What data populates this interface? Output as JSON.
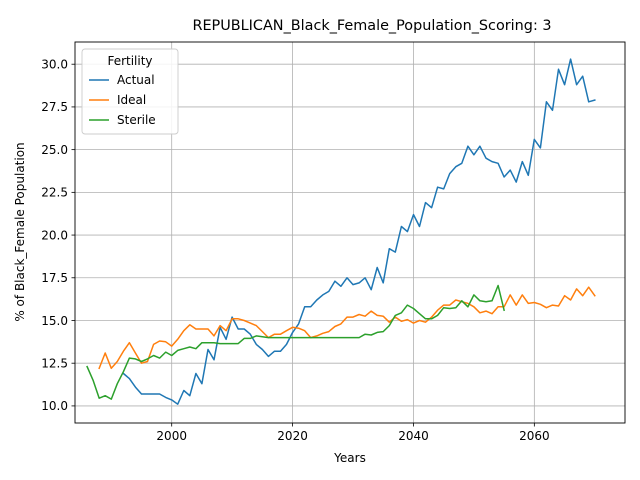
{
  "chart_data": {
    "type": "line",
    "title": "REPUBLICAN_Black_Female_Population_Scoring: 3",
    "xlabel": "Years",
    "ylabel": "% of Black_Female Population",
    "xlim": [
      1984,
      2075
    ],
    "ylim": [
      9.0,
      31.3
    ],
    "xticks": [
      2000,
      2020,
      2040,
      2060
    ],
    "yticks": [
      10.0,
      12.5,
      15.0,
      17.5,
      20.0,
      22.5,
      25.0,
      27.5,
      30.0
    ],
    "grid": true,
    "legend": {
      "title": "Fertility",
      "position": "top-left"
    },
    "series": [
      {
        "name": "Actual",
        "color": "#1f77b4",
        "x": [
          1992,
          1993,
          1994,
          1995,
          1996,
          1997,
          1998,
          1999,
          2000,
          2001,
          2002,
          2003,
          2004,
          2005,
          2006,
          2007,
          2008,
          2009,
          2010,
          2011,
          2012,
          2013,
          2014,
          2015,
          2016,
          2017,
          2018,
          2019,
          2020,
          2021,
          2022,
          2023,
          2024,
          2025,
          2026,
          2027,
          2028,
          2029,
          2030,
          2031,
          2032,
          2033,
          2034,
          2035,
          2036,
          2037,
          2038,
          2039,
          2040,
          2041,
          2042,
          2043,
          2044,
          2045,
          2046,
          2047,
          2048,
          2049,
          2050,
          2051,
          2052,
          2053,
          2054,
          2055,
          2056,
          2057,
          2058,
          2059,
          2060,
          2061,
          2062,
          2063,
          2064,
          2065,
          2066,
          2067,
          2068,
          2069,
          2070
        ],
        "values": [
          11.9,
          11.6,
          11.1,
          10.7,
          10.7,
          10.7,
          10.7,
          10.5,
          10.35,
          10.1,
          10.9,
          10.6,
          11.9,
          11.3,
          13.3,
          12.7,
          14.6,
          13.9,
          15.2,
          14.5,
          14.5,
          14.2,
          13.6,
          13.3,
          12.9,
          13.2,
          13.2,
          13.6,
          14.3,
          14.8,
          15.8,
          15.8,
          16.2,
          16.5,
          16.7,
          17.3,
          17.0,
          17.5,
          17.1,
          17.2,
          17.5,
          16.8,
          18.1,
          17.2,
          19.2,
          19.0,
          20.5,
          20.2,
          21.2,
          20.5,
          21.9,
          21.6,
          22.8,
          22.7,
          23.6,
          24.0,
          24.2,
          25.2,
          24.7,
          25.2,
          24.5,
          24.3,
          24.2,
          23.4,
          23.8,
          23.1,
          24.3,
          23.5,
          25.6,
          25.1,
          27.8,
          27.3,
          29.7,
          28.8,
          30.3,
          28.8,
          29.3,
          27.8,
          27.9
        ]
      },
      {
        "name": "Ideal",
        "color": "#ff7f0e",
        "x": [
          1988,
          1989,
          1990,
          1991,
          1992,
          1993,
          1994,
          1995,
          1996,
          1997,
          1998,
          1999,
          2000,
          2001,
          2002,
          2003,
          2004,
          2005,
          2006,
          2007,
          2008,
          2009,
          2010,
          2011,
          2012,
          2013,
          2014,
          2015,
          2016,
          2017,
          2018,
          2019,
          2020,
          2021,
          2022,
          2023,
          2024,
          2025,
          2026,
          2027,
          2028,
          2029,
          2030,
          2031,
          2032,
          2033,
          2034,
          2035,
          2036,
          2037,
          2038,
          2039,
          2040,
          2041,
          2042,
          2043,
          2044,
          2045,
          2046,
          2047,
          2048,
          2049,
          2050,
          2051,
          2052,
          2053,
          2054,
          2055,
          2056,
          2057,
          2058,
          2059,
          2060,
          2061,
          2062,
          2063,
          2064,
          2065,
          2066,
          2067,
          2068,
          2069,
          2070
        ],
        "values": [
          12.2,
          13.1,
          12.2,
          12.6,
          13.2,
          13.7,
          13.1,
          12.5,
          12.6,
          13.6,
          13.8,
          13.75,
          13.5,
          13.9,
          14.4,
          14.75,
          14.5,
          14.5,
          14.5,
          14.1,
          14.7,
          14.4,
          15.1,
          15.1,
          15.0,
          14.85,
          14.7,
          14.35,
          14.0,
          14.2,
          14.2,
          14.4,
          14.6,
          14.55,
          14.4,
          14.0,
          14.1,
          14.25,
          14.35,
          14.65,
          14.8,
          15.2,
          15.2,
          15.35,
          15.25,
          15.55,
          15.3,
          15.25,
          14.9,
          15.2,
          14.95,
          15.05,
          14.85,
          15.0,
          14.9,
          15.2,
          15.6,
          15.9,
          15.9,
          16.2,
          16.1,
          16.0,
          15.8,
          15.45,
          15.55,
          15.4,
          15.8,
          15.8,
          16.5,
          15.9,
          16.5,
          16.0,
          16.05,
          15.95,
          15.75,
          15.9,
          15.85,
          16.45,
          16.2,
          16.85,
          16.45,
          16.95,
          16.45
        ]
      },
      {
        "name": "Sterile",
        "color": "#2ca02c",
        "x": [
          1986,
          1987,
          1988,
          1989,
          1990,
          1991,
          1992,
          1993,
          1994,
          1995,
          1996,
          1997,
          1998,
          1999,
          2000,
          2001,
          2002,
          2003,
          2004,
          2005,
          2006,
          2007,
          2008,
          2009,
          2010,
          2011,
          2012,
          2013,
          2014,
          2015,
          2016,
          2017,
          2018,
          2019,
          2020,
          2021,
          2022,
          2023,
          2024,
          2025,
          2026,
          2027,
          2028,
          2029,
          2030,
          2031,
          2032,
          2033,
          2034,
          2035,
          2036,
          2037,
          2038,
          2039,
          2040,
          2041,
          2042,
          2043,
          2044,
          2045,
          2046,
          2047,
          2048,
          2049,
          2050,
          2051,
          2052,
          2053,
          2054,
          2055
        ],
        "values": [
          12.3,
          11.5,
          10.45,
          10.6,
          10.4,
          11.3,
          12.0,
          12.8,
          12.75,
          12.6,
          12.75,
          12.95,
          12.8,
          13.15,
          12.95,
          13.25,
          13.35,
          13.45,
          13.35,
          13.7,
          13.7,
          13.7,
          13.65,
          13.65,
          13.65,
          13.65,
          13.95,
          13.95,
          14.1,
          14.05,
          14.0,
          14.0,
          14.0,
          14.0,
          14.0,
          14.0,
          14.0,
          14.0,
          14.0,
          14.0,
          14.0,
          14.0,
          14.0,
          14.0,
          14.0,
          14.0,
          14.2,
          14.15,
          14.3,
          14.35,
          14.7,
          15.3,
          15.45,
          15.9,
          15.7,
          15.4,
          15.1,
          15.1,
          15.3,
          15.75,
          15.7,
          15.75,
          16.15,
          15.8,
          16.5,
          16.15,
          16.1,
          16.15,
          17.05,
          15.6
        ]
      }
    ]
  }
}
